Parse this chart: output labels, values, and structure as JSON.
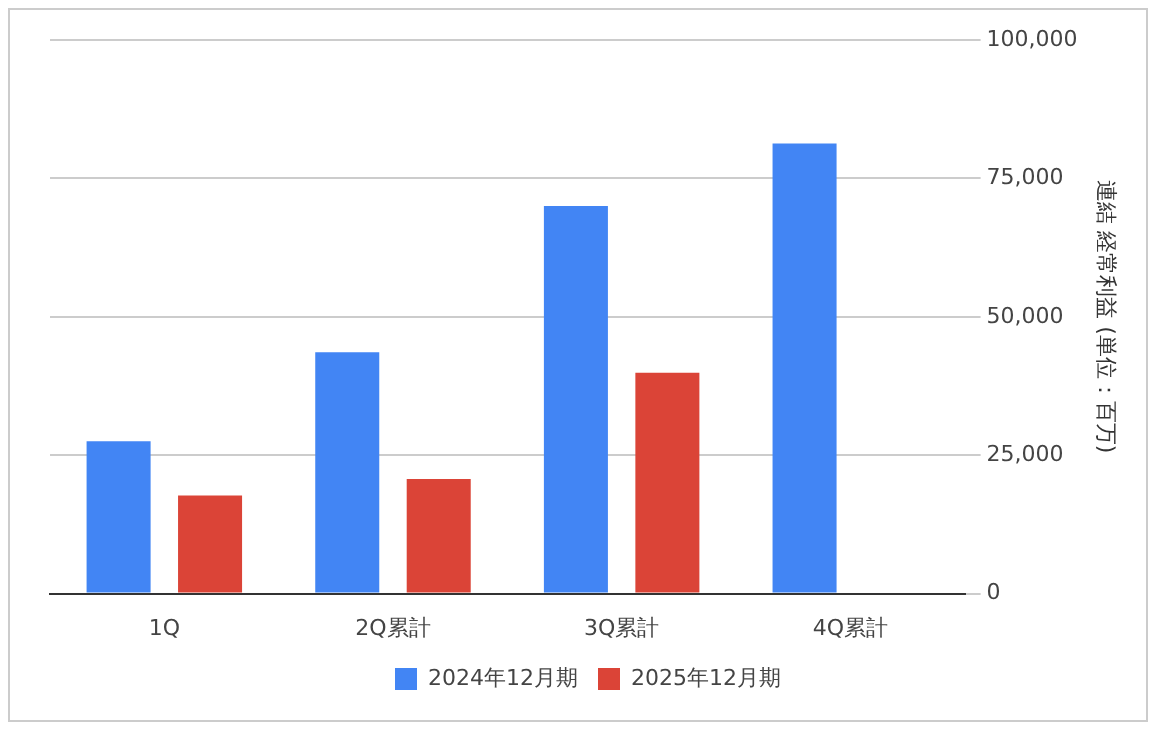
{
  "chart_data": {
    "type": "bar",
    "categories": [
      "1Q",
      "2Q累計",
      "3Q累計",
      "4Q累計"
    ],
    "series": [
      {
        "name": "2024年12月期",
        "color": "#4285f4",
        "values": [
          27500,
          43600,
          70000,
          81300
        ]
      },
      {
        "name": "2025年12月期",
        "color": "#db4437",
        "values": [
          17700,
          20700,
          39900,
          null
        ]
      }
    ],
    "ylabel": "連結 経常利益 (単位：百万)",
    "ylim": [
      0,
      100000
    ],
    "yticks": [
      {
        "value": 0,
        "label": "0"
      },
      {
        "value": 25000,
        "label": "25,000"
      },
      {
        "value": 50000,
        "label": "50,000"
      },
      {
        "value": 75000,
        "label": "75,000"
      },
      {
        "value": 100000,
        "label": "100,000"
      }
    ],
    "grid": "y",
    "legend": "bottom"
  }
}
